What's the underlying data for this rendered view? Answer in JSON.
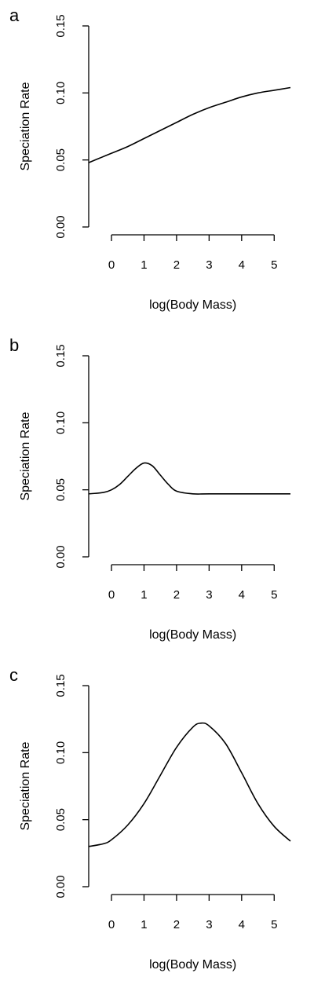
{
  "chart_data": [
    {
      "type": "line",
      "panel_label": "a",
      "title": "",
      "xlabel": "log(Body Mass)",
      "ylabel": "Speciation Rate",
      "xlim": [
        -0.7,
        5.5
      ],
      "ylim": [
        0,
        0.15
      ],
      "x_ticks": [
        0,
        1,
        2,
        3,
        4,
        5
      ],
      "y_ticks": [
        "0.00",
        "0.05",
        "0.10",
        "0.15"
      ],
      "grid": false,
      "legend": "none",
      "series": [
        {
          "x": [
            -0.7,
            -0.5,
            0,
            0.5,
            1,
            1.5,
            2,
            2.5,
            3,
            3.5,
            4,
            4.5,
            5,
            5.5
          ],
          "y": [
            0.048,
            0.05,
            0.055,
            0.06,
            0.066,
            0.072,
            0.078,
            0.084,
            0.089,
            0.093,
            0.097,
            0.1,
            0.102,
            0.104
          ]
        }
      ]
    },
    {
      "type": "line",
      "panel_label": "b",
      "title": "",
      "xlabel": "log(Body Mass)",
      "ylabel": "Speciation Rate",
      "xlim": [
        -0.7,
        5.5
      ],
      "ylim": [
        0,
        0.15
      ],
      "x_ticks": [
        0,
        1,
        2,
        3,
        4,
        5
      ],
      "y_ticks": [
        "0.00",
        "0.05",
        "0.10",
        "0.15"
      ],
      "grid": false,
      "legend": "none",
      "series": [
        {
          "x": [
            -0.7,
            -0.25,
            0,
            0.25,
            0.5,
            0.75,
            1,
            1.25,
            1.5,
            1.75,
            2,
            2.5,
            3,
            4,
            5,
            5.5
          ],
          "y": [
            0.047,
            0.048,
            0.05,
            0.054,
            0.06,
            0.066,
            0.07,
            0.068,
            0.061,
            0.054,
            0.049,
            0.047,
            0.047,
            0.047,
            0.047,
            0.047
          ]
        }
      ]
    },
    {
      "type": "line",
      "panel_label": "c",
      "title": "",
      "xlabel": "log(Body Mass)",
      "ylabel": "Speciation Rate",
      "xlim": [
        -0.7,
        5.5
      ],
      "ylim": [
        0,
        0.15
      ],
      "x_ticks": [
        0,
        1,
        2,
        3,
        4,
        5
      ],
      "y_ticks": [
        "0.00",
        "0.05",
        "0.10",
        "0.15"
      ],
      "grid": false,
      "legend": "none",
      "series": [
        {
          "x": [
            -0.7,
            -0.25,
            0,
            0.5,
            1,
            1.5,
            2,
            2.5,
            2.75,
            3,
            3.5,
            4,
            4.5,
            5,
            5.5
          ],
          "y": [
            0.03,
            0.032,
            0.035,
            0.046,
            0.062,
            0.083,
            0.104,
            0.119,
            0.122,
            0.12,
            0.107,
            0.085,
            0.062,
            0.045,
            0.034
          ]
        }
      ]
    }
  ]
}
